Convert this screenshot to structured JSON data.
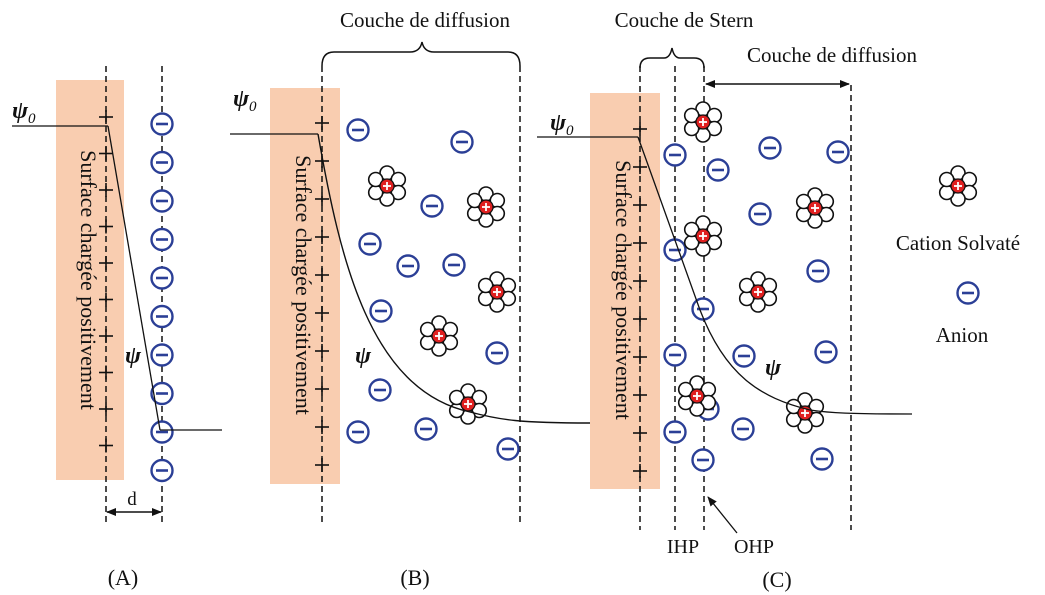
{
  "panels": {
    "a": {
      "label": "(A)",
      "surface_text": "Surface chargée positivement",
      "psi0": "ψ",
      "psi0_sub": "0",
      "psi": "ψ",
      "d": "d"
    },
    "b": {
      "label": "(B)",
      "surface_text": "Surface chargée positivement",
      "psi0": "ψ",
      "psi0_sub": "0",
      "psi": "ψ",
      "diffuse_layer": "Couche de diffusion"
    },
    "c": {
      "label": "(C)",
      "surface_text": "Surface chargée positivement",
      "psi0": "ψ",
      "psi0_sub": "0",
      "psi": "ψ",
      "stern_layer": "Couche de Stern",
      "diffuse_layer": "Couche de diffusion",
      "ihp": "IHP",
      "ohp": "OHP"
    }
  },
  "legend": {
    "cation_label": "Cation Solvaté",
    "anion_label": "Anion"
  },
  "colors": {
    "surface": "#f9cdb0",
    "anion": "#2b3f96",
    "cation_center": "#e02020",
    "line": "#111111"
  },
  "icons": {
    "anion": "minus-circle-icon",
    "cation": "solvated-cation-icon",
    "surface_charge": "plus-sign"
  }
}
